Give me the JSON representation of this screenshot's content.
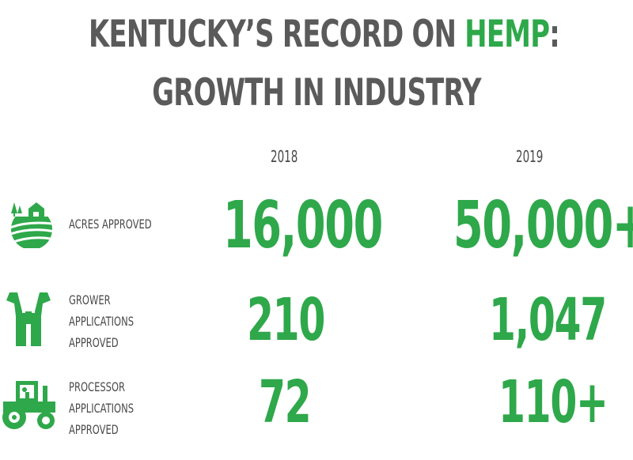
{
  "title": {
    "line1_prefix": "KENTUCKY’S RECORD ON ",
    "line1_highlight": "HEMP",
    "line1_suffix": ":",
    "line2": "GROWTH IN INDUSTRY"
  },
  "colors": {
    "green": "#2ea84a",
    "gray": "#5a5a5a"
  },
  "years": [
    "2018",
    "2019"
  ],
  "rows": [
    {
      "icon": "farm-field-icon",
      "label_lines": [
        "ACRES APPROVED"
      ],
      "values": [
        "16,000",
        "50,000+"
      ]
    },
    {
      "icon": "overalls-icon",
      "label_lines": [
        "GROWER",
        "APPLICATIONS",
        "APPROVED"
      ],
      "values": [
        "210",
        "1,047"
      ]
    },
    {
      "icon": "tractor-icon",
      "label_lines": [
        "PROCESSOR",
        "APPLICATIONS",
        "APPROVED"
      ],
      "values": [
        "72",
        "110+"
      ]
    }
  ]
}
